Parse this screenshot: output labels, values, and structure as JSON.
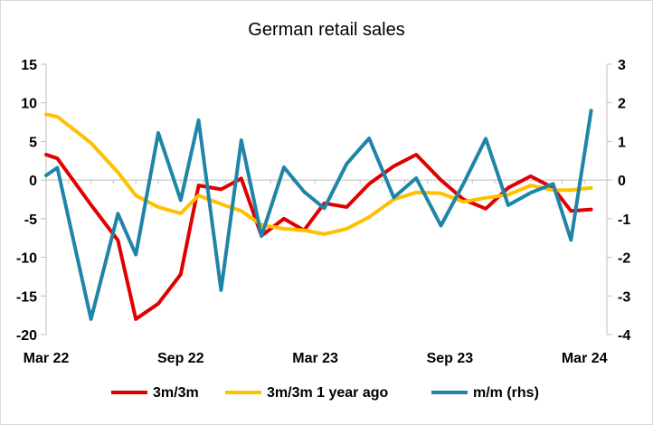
{
  "chart_data": {
    "type": "line",
    "title": "German retail sales",
    "x": [
      "Mar 22",
      "Apr 22",
      "May 22",
      "Jun 22",
      "Jul 22",
      "Aug 22",
      "Sep 22",
      "Oct 22",
      "Nov 22",
      "Dec 22",
      "Jan 23",
      "Feb 23",
      "Mar 23",
      "Apr 23",
      "May 23",
      "Jun 23",
      "Jul 23",
      "Aug 23",
      "Sep 23",
      "Oct 23",
      "Nov 23",
      "Dec 23",
      "Jan 24",
      "Feb 24",
      "Mar 24"
    ],
    "x_tick_labels": [
      "Mar 22",
      "Sep 22",
      "Mar 23",
      "Sep 23",
      "Mar 24"
    ],
    "x_tick_indices": [
      0,
      6,
      12,
      18,
      24
    ],
    "y_left_ticks": [
      15,
      10,
      5,
      0,
      -5,
      -10,
      -15,
      -20
    ],
    "y_right_ticks": [
      3,
      2,
      1,
      0,
      -1,
      -2,
      -3,
      -4
    ],
    "ylim_left": [
      -20,
      15
    ],
    "ylim_right": [
      -4,
      3
    ],
    "legend_position": "bottom",
    "series": [
      {
        "name": "3m/3m",
        "color": "#e00000",
        "axis": "left",
        "points": [
          [
            0,
            3.3
          ],
          [
            0.5,
            2.8
          ],
          [
            2,
            -3.2
          ],
          [
            3.2,
            -7.8
          ],
          [
            4,
            -18
          ],
          [
            5,
            -16
          ],
          [
            6,
            -12.2
          ],
          [
            6.8,
            -0.7
          ],
          [
            7.8,
            -1.2
          ],
          [
            8.7,
            0.2
          ],
          [
            9.6,
            -7.2
          ],
          [
            10.6,
            -5
          ],
          [
            11.5,
            -6.5
          ],
          [
            12.4,
            -3
          ],
          [
            13.4,
            -3.5
          ],
          [
            14.4,
            -0.5
          ],
          [
            15.5,
            1.8
          ],
          [
            16.5,
            3.3
          ],
          [
            17.6,
            0
          ],
          [
            18.6,
            -2.5
          ],
          [
            19.6,
            -3.7
          ],
          [
            20.6,
            -1
          ],
          [
            21.6,
            0.5
          ],
          [
            22.6,
            -1
          ],
          [
            23.4,
            -4
          ],
          [
            24.3,
            -3.8
          ]
        ]
      },
      {
        "name": "3m/3m 1 year ago",
        "color": "#ffc000",
        "axis": "left",
        "points": [
          [
            0,
            8.5
          ],
          [
            0.5,
            8.2
          ],
          [
            2,
            4.8
          ],
          [
            3.2,
            1
          ],
          [
            4,
            -2
          ],
          [
            5,
            -3.5
          ],
          [
            6,
            -4.3
          ],
          [
            6.8,
            -2
          ],
          [
            7.8,
            -3.1
          ],
          [
            8.7,
            -4
          ],
          [
            9.6,
            -5.8
          ],
          [
            10.6,
            -6.3
          ],
          [
            11.5,
            -6.5
          ],
          [
            12.4,
            -7
          ],
          [
            13.4,
            -6.3
          ],
          [
            14.4,
            -4.8
          ],
          [
            15.5,
            -2.5
          ],
          [
            16.5,
            -1.6
          ],
          [
            17.6,
            -1.7
          ],
          [
            18.6,
            -2.8
          ],
          [
            19.6,
            -2.3
          ],
          [
            20.6,
            -1.9
          ],
          [
            21.6,
            -0.7
          ],
          [
            22.6,
            -1.3
          ],
          [
            23.4,
            -1.3
          ],
          [
            24.3,
            -1
          ]
        ]
      },
      {
        "name": "m/m (rhs)",
        "color": "#1f85a8",
        "axis": "right",
        "points": [
          [
            0,
            0.12
          ],
          [
            0.5,
            0.32
          ],
          [
            2,
            -3.6
          ],
          [
            3.2,
            -0.87
          ],
          [
            4,
            -1.93
          ],
          [
            5,
            1.22
          ],
          [
            6,
            -0.52
          ],
          [
            6.8,
            1.55
          ],
          [
            7.8,
            -2.85
          ],
          [
            8.7,
            1.03
          ],
          [
            9.6,
            -1.45
          ],
          [
            10.6,
            0.33
          ],
          [
            11.5,
            -0.3
          ],
          [
            12.4,
            -0.73
          ],
          [
            13.4,
            0.42
          ],
          [
            14.4,
            1.08
          ],
          [
            15.5,
            -0.45
          ],
          [
            16.5,
            0.05
          ],
          [
            17.6,
            -1.18
          ],
          [
            18.6,
            -0.1
          ],
          [
            19.6,
            1.07
          ],
          [
            20.6,
            -0.65
          ],
          [
            21.6,
            -0.33
          ],
          [
            22.6,
            -0.1
          ],
          [
            23.4,
            -1.55
          ],
          [
            24.3,
            1.8
          ]
        ]
      }
    ]
  }
}
